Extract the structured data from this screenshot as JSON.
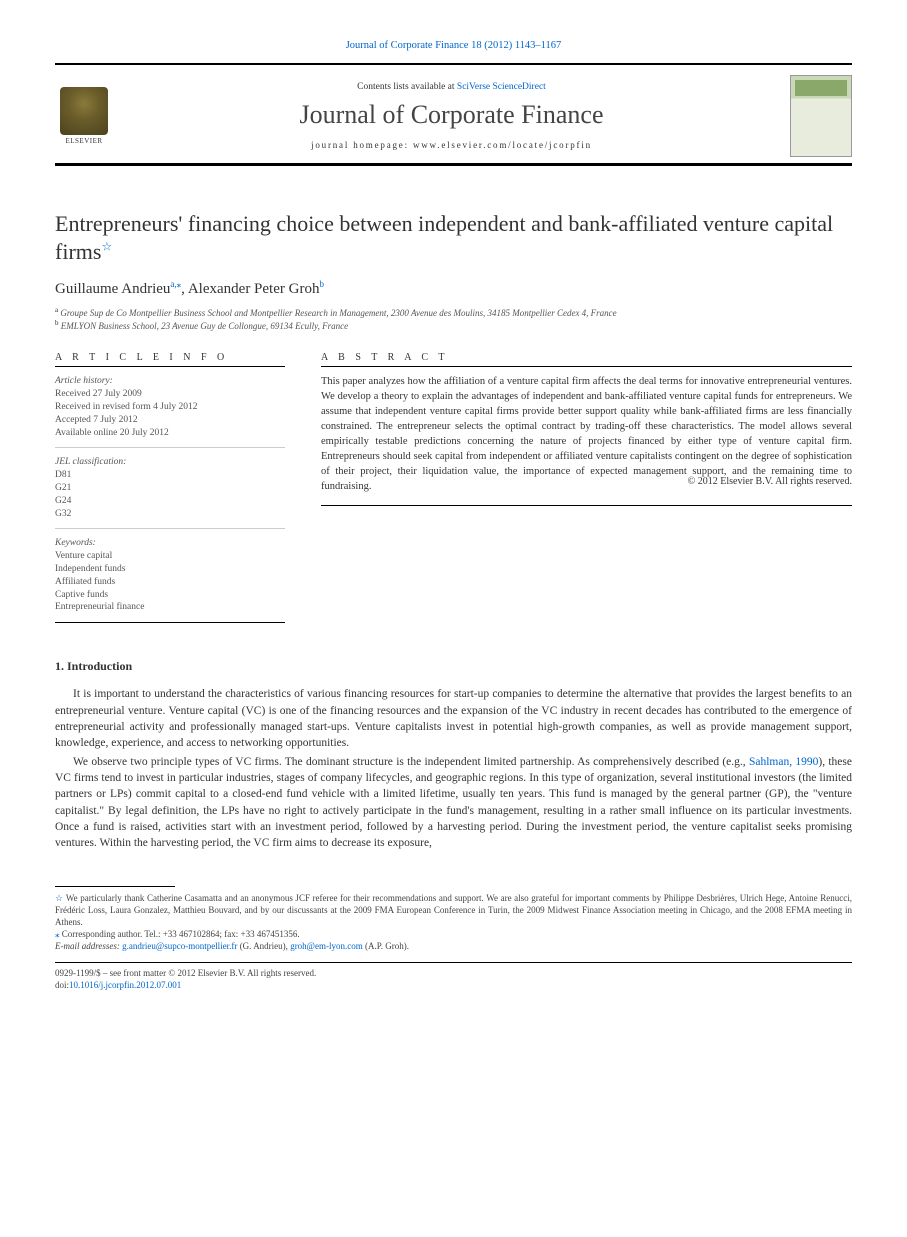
{
  "header": {
    "journal_ref": "Journal of Corporate Finance 18 (2012) 1143–1167",
    "contents_prefix": "Contents lists available at ",
    "contents_link": "SciVerse ScienceDirect",
    "journal_title": "Journal of Corporate Finance",
    "homepage_label": "journal homepage: ",
    "homepage_url": "www.elsevier.com/locate/jcorpfin",
    "publisher": "ELSEVIER"
  },
  "article": {
    "title": "Entrepreneurs' financing choice between independent and bank-affiliated venture capital firms",
    "title_marker": "☆",
    "authors": [
      {
        "name": "Guillaume Andrieu",
        "sup": "a,⁎"
      },
      {
        "name": "Alexander Peter Groh",
        "sup": "b"
      }
    ],
    "affiliations": [
      {
        "sup": "a",
        "text": "Groupe Sup de Co Montpellier Business School and Montpellier Research in Management, 2300 Avenue des Moulins, 34185 Montpellier Cedex 4, France"
      },
      {
        "sup": "b",
        "text": "EMLYON Business School, 23 Avenue Guy de Collongue, 69134 Ecully, France"
      }
    ]
  },
  "info": {
    "heading": "A R T I C L E   I N F O",
    "history_label": "Article history:",
    "history": [
      "Received 27 July 2009",
      "Received in revised form 4 July 2012",
      "Accepted 7 July 2012",
      "Available online 20 July 2012"
    ],
    "jel_label": "JEL classification:",
    "jel": [
      "D81",
      "G21",
      "G24",
      "G32"
    ],
    "kw_label": "Keywords:",
    "keywords": [
      "Venture capital",
      "Independent funds",
      "Affiliated funds",
      "Captive funds",
      "Entrepreneurial finance"
    ]
  },
  "abstract": {
    "heading": "A B S T R A C T",
    "text": "This paper analyzes how the affiliation of a venture capital firm affects the deal terms for innovative entrepreneurial ventures. We develop a theory to explain the advantages of independent and bank-affiliated venture capital funds for entrepreneurs. We assume that independent venture capital firms provide better support quality while bank-affiliated firms are less financially constrained. The entrepreneur selects the optimal contract by trading-off these characteristics. The model allows several empirically testable predictions concerning the nature of projects financed by either type of venture capital firm. Entrepreneurs should seek capital from independent or affiliated venture capitalists contingent on the degree of sophistication of their project, their liquidation value, the importance of expected management support, and the remaining time to fundraising.",
    "copyright": "© 2012 Elsevier B.V. All rights reserved."
  },
  "section": {
    "heading": "1. Introduction",
    "p1": "It is important to understand the characteristics of various financing resources for start-up companies to determine the alternative that provides the largest benefits to an entrepreneurial venture. Venture capital (VC) is one of the financing resources and the expansion of the VC industry in recent decades has contributed to the emergence of entrepreneurial activity and professionally managed start-ups. Venture capitalists invest in potential high-growth companies, as well as provide management support, knowledge, experience, and access to networking opportunities.",
    "p2_a": "We observe two principle types of VC firms. The dominant structure is the independent limited partnership. As comprehensively described (e.g., ",
    "p2_cite": "Sahlman, 1990",
    "p2_b": "), these VC firms tend to invest in particular industries, stages of company lifecycles, and geographic regions. In this type of organization, several institutional investors (the limited partners or LPs) commit capital to a closed-end fund vehicle with a limited lifetime, usually ten years. This fund is managed by the general partner (GP), the \"venture capitalist.\" By legal definition, the LPs have no right to actively participate in the fund's management, resulting in a rather small influence on its particular investments. Once a fund is raised, activities start with an investment period, followed by a harvesting period. During the investment period, the venture capitalist seeks promising ventures. Within the harvesting period, the VC firm aims to decrease its exposure,"
  },
  "footnotes": {
    "ack_sym": "☆",
    "ack": "We particularly thank Catherine Casamatta and an anonymous JCF referee for their recommendations and support. We are also grateful for important comments by Philippe Desbrières, Ulrich Hege, Antoine Renucci, Frédéric Loss, Laura Gonzalez, Matthieu Bouvard, and by our discussants at the 2009 FMA European Conference in Turin, the 2009 Midwest Finance Association meeting in Chicago, and the 2008 EFMA meeting in Athens.",
    "corr_sym": "⁎",
    "corr": "Corresponding author. Tel.: +33 467102864; fax: +33 467451356.",
    "email_label": "E-mail addresses: ",
    "email1": "g.andrieu@supco-montpellier.fr",
    "email1_who": " (G. Andrieu), ",
    "email2": "groh@em-lyon.com",
    "email2_who": " (A.P. Groh)."
  },
  "footer": {
    "line1": "0929-1199/$ – see front matter © 2012 Elsevier B.V. All rights reserved.",
    "doi_label": "doi:",
    "doi": "10.1016/j.jcorpfin.2012.07.001"
  },
  "colors": {
    "link": "#0066cc",
    "text": "#333333",
    "muted": "#555555",
    "rule": "#000000"
  }
}
